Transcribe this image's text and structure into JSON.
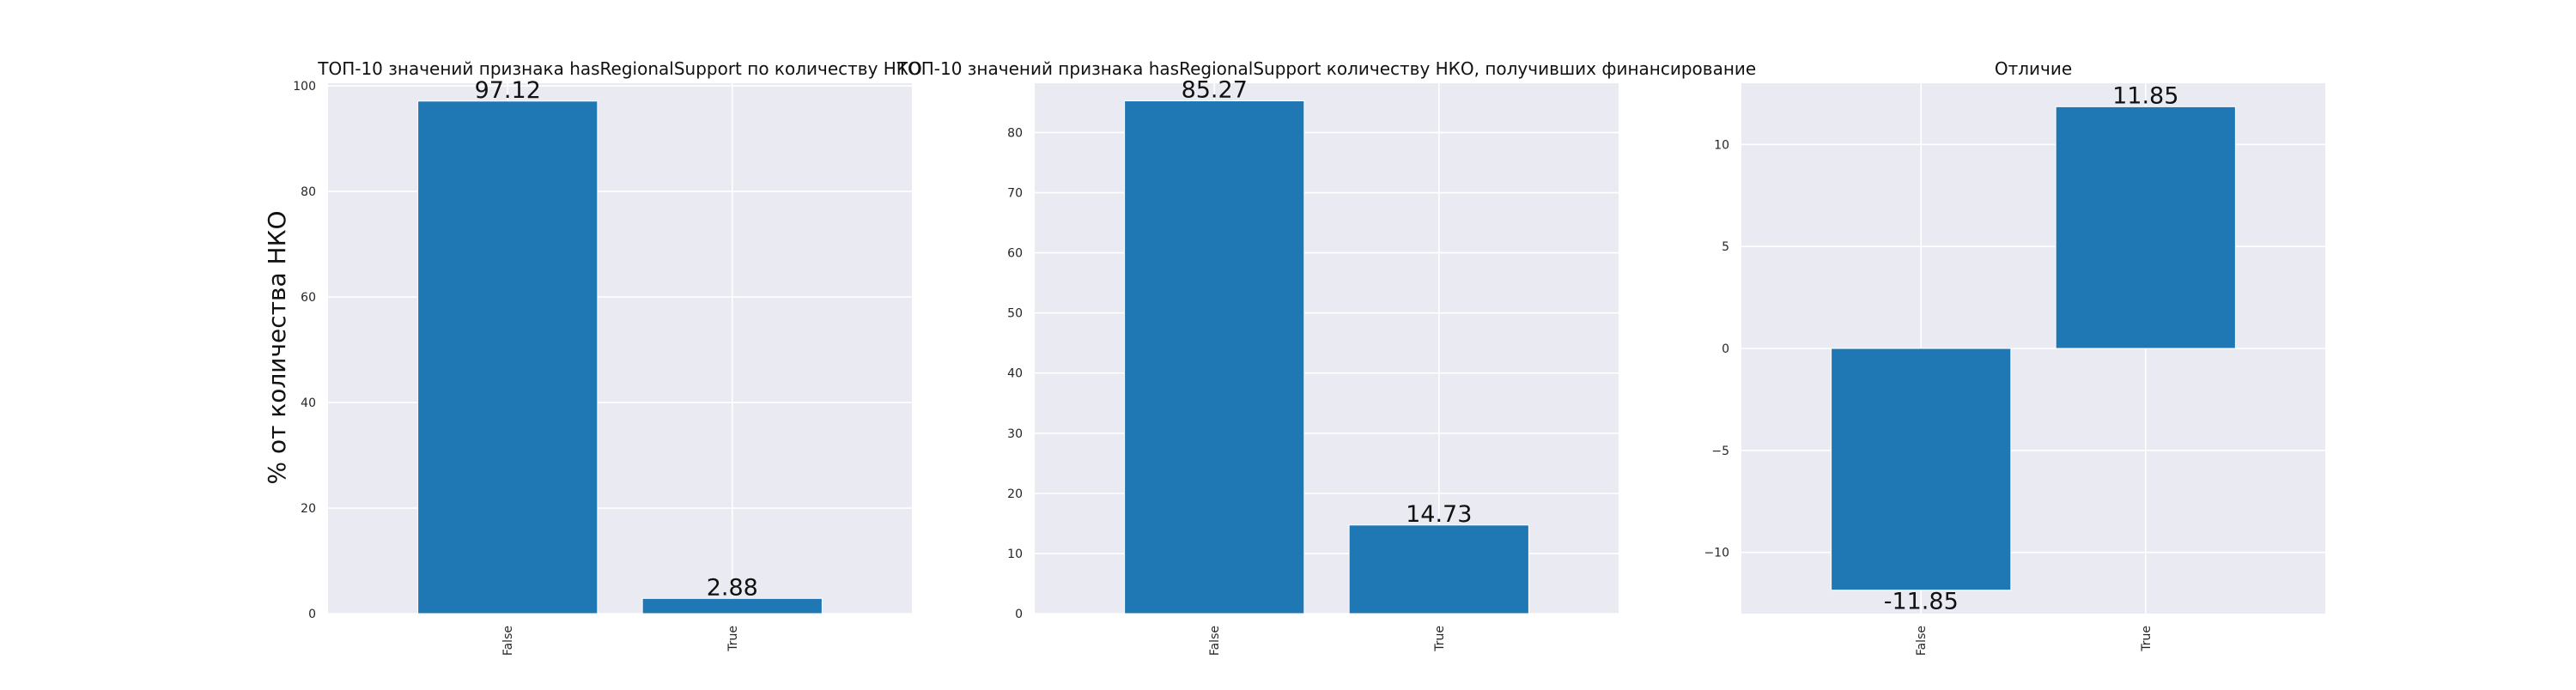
{
  "figure": {
    "ylabel": "% от количества НКО"
  },
  "chart_data": [
    {
      "type": "bar",
      "title": "ТОП-10 значений признака hasRegionalSupport по количеству НКО",
      "categories": [
        "False",
        "True"
      ],
      "values": [
        97.12,
        2.88
      ],
      "value_labels": [
        "97.12",
        "2.88"
      ],
      "ylim": [
        0,
        100.5
      ],
      "yticks": [
        0,
        20,
        40,
        60,
        80,
        100
      ],
      "grid": true,
      "bar_color": "#1f77b4",
      "background_color": "#eaeaf2"
    },
    {
      "type": "bar",
      "title": "ТОП-10 значений признака hasRegionalSupport количеству НКО, получивших финансирование",
      "categories": [
        "False",
        "True"
      ],
      "values": [
        85.27,
        14.73
      ],
      "value_labels": [
        "85.27",
        "14.73"
      ],
      "ylim": [
        0,
        88.2
      ],
      "yticks": [
        0,
        10,
        20,
        30,
        40,
        50,
        60,
        70,
        80
      ],
      "grid": true,
      "bar_color": "#1f77b4",
      "background_color": "#eaeaf2"
    },
    {
      "type": "bar",
      "title": "Отличие",
      "categories": [
        "False",
        "True"
      ],
      "values": [
        -11.85,
        11.85
      ],
      "value_labels": [
        "-11.85",
        "11.85"
      ],
      "ylim": [
        -13.0,
        13.0
      ],
      "yticks": [
        -10,
        -5,
        0,
        5,
        10
      ],
      "ytick_labels": [
        "−10",
        "−5",
        "0",
        "5",
        "10"
      ],
      "grid": true,
      "bar_color": "#1f77b4",
      "background_color": "#eaeaf2"
    }
  ]
}
